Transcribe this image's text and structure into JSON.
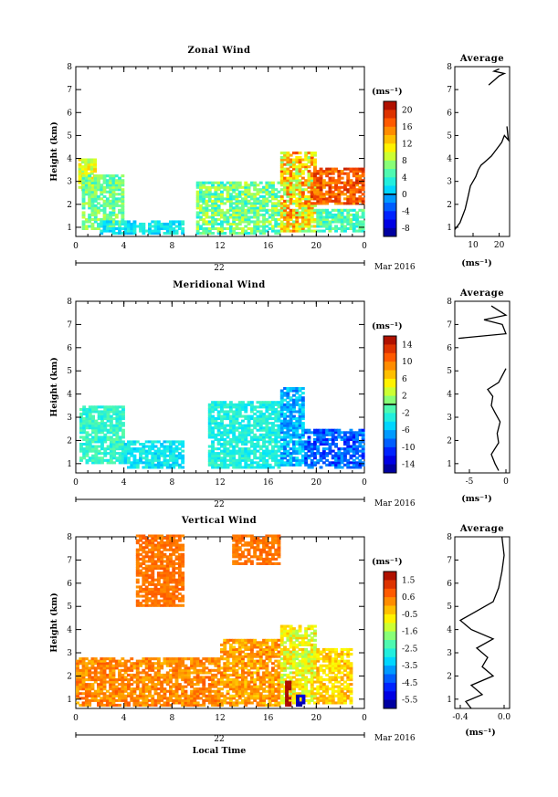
{
  "figure": {
    "x_axis_label": "Local Time",
    "date_label": "22",
    "month_label": "Mar 2016"
  },
  "chart_data": [
    {
      "type": "heatmap",
      "title": "Zonal Wind",
      "xlabel": "",
      "ylabel": "Height (km)",
      "xlim": [
        0,
        24
      ],
      "ylim": [
        0.6,
        8
      ],
      "x_ticks": [
        "0",
        "4",
        "8",
        "12",
        "16",
        "20",
        "0"
      ],
      "y_ticks": [
        "1",
        "2",
        "3",
        "4",
        "5",
        "6",
        "7",
        "8"
      ],
      "colorbar": {
        "unit": "(ms⁻¹)",
        "ticks": [
          "20",
          "16",
          "12",
          "8",
          "4",
          "0",
          "-4",
          "-8"
        ],
        "range": [
          -10,
          22
        ],
        "marker_at": 0
      },
      "profile": {
        "title": "Average",
        "xlabel": "(ms⁻¹)",
        "x_ticks": [
          "10",
          "20"
        ],
        "xlim": [
          3,
          24
        ],
        "points": [
          [
            3,
            0.9
          ],
          [
            5,
            1.2
          ],
          [
            7,
            1.8
          ],
          [
            8,
            2.3
          ],
          [
            9,
            2.8
          ],
          [
            11,
            3.2
          ],
          [
            12,
            3.5
          ],
          [
            13,
            3.7
          ],
          [
            15,
            3.9
          ],
          [
            17,
            4.1
          ],
          [
            19,
            4.4
          ],
          [
            21,
            4.7
          ],
          [
            22,
            5.0
          ],
          [
            23.5,
            4.8
          ],
          [
            23,
            5.4
          ]
        ],
        "points_upper": [
          [
            16,
            7.2
          ],
          [
            18,
            7.4
          ],
          [
            20,
            7.6
          ],
          [
            22,
            7.7
          ],
          [
            18,
            7.8
          ],
          [
            20,
            7.9
          ]
        ]
      },
      "field": {
        "regions": [
          {
            "t": [
              0.2,
              1.5
            ],
            "h": [
              2.6,
              4.0
            ],
            "v": 10,
            "spread": 3
          },
          {
            "t": [
              0.5,
              4
            ],
            "h": [
              0.9,
              3.3
            ],
            "v": 6,
            "spread": 3
          },
          {
            "t": [
              2,
              9
            ],
            "h": [
              0.7,
              1.3
            ],
            "v": 2,
            "spread": 2
          },
          {
            "t": [
              10,
              17
            ],
            "h": [
              0.7,
              3.0
            ],
            "v": 6,
            "spread": 4
          },
          {
            "t": [
              17,
              20
            ],
            "h": [
              0.8,
              4.3
            ],
            "v": 12,
            "spread": 6
          },
          {
            "t": [
              19.5,
              24
            ],
            "h": [
              2.0,
              3.6
            ],
            "v": 17,
            "spread": 3
          },
          {
            "t": [
              20,
              24
            ],
            "h": [
              0.8,
              1.8
            ],
            "v": 5,
            "spread": 3
          }
        ]
      }
    },
    {
      "type": "heatmap",
      "title": "Meridional Wind",
      "xlabel": "",
      "ylabel": "Height (km)",
      "xlim": [
        0,
        24
      ],
      "ylim": [
        0.6,
        8
      ],
      "x_ticks": [
        "0",
        "4",
        "8",
        "12",
        "16",
        "20",
        "0"
      ],
      "y_ticks": [
        "1",
        "2",
        "3",
        "4",
        "5",
        "6",
        "7",
        "8"
      ],
      "colorbar": {
        "unit": "(ms⁻¹)",
        "ticks": [
          "14",
          "10",
          "6",
          "2",
          "-2",
          "-6",
          "-10",
          "-14"
        ],
        "range": [
          -16,
          16
        ],
        "marker_at": 0
      },
      "profile": {
        "title": "Average",
        "xlabel": "(ms⁻¹)",
        "x_ticks": [
          "-5",
          "0"
        ],
        "xlim": [
          -7,
          0.5
        ],
        "points": [
          [
            -1,
            0.7
          ],
          [
            -1.5,
            1.0
          ],
          [
            -2,
            1.4
          ],
          [
            -1,
            1.9
          ],
          [
            -1.2,
            2.3
          ],
          [
            -0.8,
            2.8
          ],
          [
            -1.5,
            3.2
          ],
          [
            -2,
            3.5
          ],
          [
            -1.8,
            3.9
          ],
          [
            -2.5,
            4.2
          ],
          [
            -1,
            4.5
          ],
          [
            -0.5,
            4.8
          ],
          [
            0,
            5.1
          ]
        ],
        "points_upper": [
          [
            -6.5,
            6.4
          ],
          [
            0,
            6.6
          ],
          [
            -0.5,
            7.0
          ],
          [
            -3,
            7.2
          ],
          [
            0,
            7.4
          ],
          [
            -2,
            7.8
          ]
        ]
      },
      "field": {
        "regions": [
          {
            "t": [
              0.3,
              4
            ],
            "h": [
              1.0,
              3.5
            ],
            "v": -2,
            "spread": 2
          },
          {
            "t": [
              4,
              9
            ],
            "h": [
              0.8,
              2.0
            ],
            "v": -4,
            "spread": 2
          },
          {
            "t": [
              11,
              17
            ],
            "h": [
              0.8,
              3.7
            ],
            "v": -3,
            "spread": 2
          },
          {
            "t": [
              17,
              19
            ],
            "h": [
              0.9,
              4.3
            ],
            "v": -6,
            "spread": 3
          },
          {
            "t": [
              19,
              24
            ],
            "h": [
              0.8,
              2.5
            ],
            "v": -9,
            "spread": 3
          }
        ]
      }
    },
    {
      "type": "heatmap",
      "title": "Vertical Wind",
      "xlabel": "Local Time",
      "ylabel": "Height (km)",
      "xlim": [
        0,
        24
      ],
      "ylim": [
        0.6,
        8
      ],
      "x_ticks": [
        "0",
        "4",
        "8",
        "12",
        "16",
        "20",
        "0"
      ],
      "y_ticks": [
        "1",
        "2",
        "3",
        "4",
        "5",
        "6",
        "7",
        "8"
      ],
      "colorbar": {
        "unit": "(ms⁻¹)",
        "ticks": [
          "1.5",
          "0.6",
          "-0.5",
          "-1.6",
          "-2.5",
          "-3.5",
          "-4.5",
          "-5.5"
        ],
        "range": [
          -6,
          2
        ],
        "marker_at": null
      },
      "profile": {
        "title": "Average",
        "xlabel": "(ms⁻¹)",
        "x_ticks": [
          "-0.4",
          "0.0"
        ],
        "xlim": [
          -0.45,
          0.05
        ],
        "points": [
          [
            -0.3,
            0.6
          ],
          [
            -0.35,
            0.9
          ],
          [
            -0.2,
            1.2
          ],
          [
            -0.3,
            1.6
          ],
          [
            -0.1,
            2.0
          ],
          [
            -0.2,
            2.4
          ],
          [
            -0.15,
            2.8
          ],
          [
            -0.25,
            3.2
          ],
          [
            -0.1,
            3.6
          ],
          [
            -0.3,
            4.0
          ],
          [
            -0.4,
            4.4
          ],
          [
            -0.25,
            4.8
          ],
          [
            -0.1,
            5.2
          ],
          [
            -0.05,
            5.8
          ],
          [
            -0.02,
            6.5
          ],
          [
            0.0,
            7.2
          ],
          [
            -0.02,
            8.0
          ]
        ]
      },
      "field": {
        "regions": [
          {
            "t": [
              0,
              12
            ],
            "h": [
              0.7,
              2.8
            ],
            "v": 0.3,
            "spread": 0.5
          },
          {
            "t": [
              12,
              17
            ],
            "h": [
              0.7,
              3.6
            ],
            "v": 0.1,
            "spread": 0.6
          },
          {
            "t": [
              17,
              20
            ],
            "h": [
              0.8,
              4.2
            ],
            "v": -0.9,
            "spread": 0.8
          },
          {
            "t": [
              20,
              23
            ],
            "h": [
              0.8,
              3.2
            ],
            "v": -0.4,
            "spread": 0.6
          },
          {
            "t": [
              17.4,
              17.9
            ],
            "h": [
              0.7,
              1.8
            ],
            "v": 1.8,
            "spread": 0.1
          },
          {
            "t": [
              18.3,
              18.9
            ],
            "h": [
              0.7,
              1.2
            ],
            "v": -5.5,
            "spread": 0.3
          },
          {
            "t": [
              5,
              9
            ],
            "h": [
              5.0,
              8.0
            ],
            "v": 0.5,
            "spread": 0.3
          },
          {
            "t": [
              13,
              17
            ],
            "h": [
              6.8,
              8.0
            ],
            "v": 0.5,
            "spread": 0.3
          }
        ]
      }
    }
  ]
}
